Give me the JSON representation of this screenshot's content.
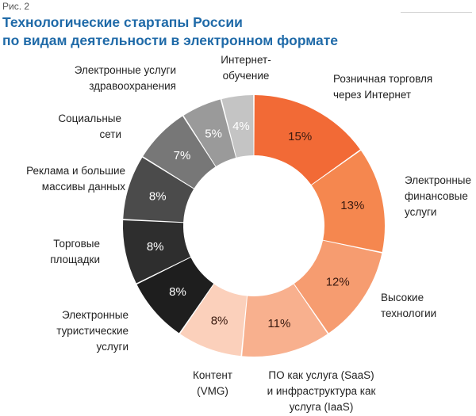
{
  "figure_label": "Рис. 2",
  "chart_data": {
    "type": "pie",
    "variant": "donut",
    "title": "Технологические стартапы России",
    "subtitle": "по видам деятельности в электронном формате",
    "value_format": "{v}%",
    "slices": [
      {
        "label": "Розничная торговля через Интернет",
        "label_lines": [
          "Розничная торговля",
          "через Интернет"
        ],
        "value": 15,
        "color": "#f26a36",
        "text_color": "#3a1a10"
      },
      {
        "label": "Электронные финансовые услуги",
        "label_lines": [
          "Электронные",
          "финансовые",
          "услуги"
        ],
        "value": 13,
        "color": "#f5874f",
        "text_color": "#3a1a10"
      },
      {
        "label": "Высокие технологии",
        "label_lines": [
          "Высокие",
          "технологии"
        ],
        "value": 12,
        "color": "#f69c70",
        "text_color": "#3a1a10"
      },
      {
        "label": "ПО как услуга (SaaS) и инфраструктура как услуга (IaaS)",
        "label_lines": [
          "ПО как услуга (SaaS)",
          "и инфраструктура как",
          "услуга (IaaS)"
        ],
        "value": 11,
        "color": "#f8b08e",
        "text_color": "#3a1a10"
      },
      {
        "label": "Контент (VMG)",
        "label_lines": [
          "Контент",
          "(VMG)"
        ],
        "value": 8,
        "color": "#fbd0bb",
        "text_color": "#3a1a10"
      },
      {
        "label": "Электронные туристические услуги",
        "label_lines": [
          "Электронные",
          "туристические",
          "услуги"
        ],
        "value": 8,
        "color": "#1e1e1e",
        "text_color": "#ffffff"
      },
      {
        "label": "Торговые площадки",
        "label_lines": [
          "Торговые",
          "площадки"
        ],
        "value": 8,
        "color": "#2e2e2e",
        "text_color": "#ffffff"
      },
      {
        "label": "Реклама и большие массивы данных",
        "label_lines": [
          "Реклама и большие",
          "массивы данных"
        ],
        "value": 8,
        "color": "#4b4b4b",
        "text_color": "#ffffff"
      },
      {
        "label": "Социальные сети",
        "label_lines": [
          "Социальные",
          "сети"
        ],
        "value": 7,
        "color": "#777777",
        "text_color": "#ffffff"
      },
      {
        "label": "Электронные услуги здравоохранения",
        "label_lines": [
          "Электронные услуги",
          "здравоохранения"
        ],
        "value": 5,
        "color": "#9a9a9a",
        "text_color": "#ffffff"
      },
      {
        "label": "Интернет-обучение",
        "label_lines": [
          "Интернет-",
          "обучение"
        ],
        "value": 4,
        "color": "#c4c4c4",
        "text_color": "#ffffff"
      }
    ]
  }
}
